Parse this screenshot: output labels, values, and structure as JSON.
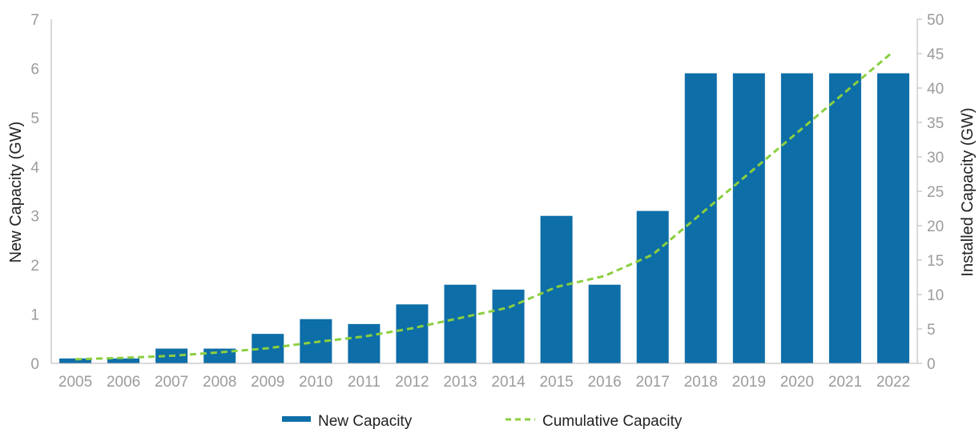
{
  "chart_data": {
    "type": "bar",
    "categories": [
      "2005",
      "2006",
      "2007",
      "2008",
      "2009",
      "2010",
      "2011",
      "2012",
      "2013",
      "2014",
      "2015",
      "2016",
      "2017",
      "2018",
      "2019",
      "2020",
      "2021",
      "2022"
    ],
    "series": [
      {
        "name": "New Capacity",
        "type": "bar",
        "axis": "left",
        "color": "#0e6ea8",
        "values": [
          0.1,
          0.1,
          0.3,
          0.3,
          0.6,
          0.9,
          0.8,
          1.2,
          1.6,
          1.5,
          3.0,
          1.6,
          3.1,
          5.9,
          5.9,
          5.9,
          5.9,
          5.9
        ]
      },
      {
        "name": "Cumulative Capacity",
        "type": "line",
        "line_style": "dashed",
        "axis": "right",
        "color": "#8bcf3f",
        "values": [
          0.6,
          0.8,
          1.1,
          1.6,
          2.2,
          3.1,
          3.9,
          5.1,
          6.6,
          8.1,
          11.1,
          12.7,
          15.8,
          21.7,
          27.6,
          33.5,
          39.4,
          45.3
        ]
      }
    ],
    "title": "",
    "xlabel": "",
    "ylabel": "New Capacity (GW)",
    "ylabel_right": "Installed Capacity (GW)",
    "ylim": [
      0,
      7
    ],
    "ylim_right": [
      0,
      50
    ],
    "yticks": [
      "0",
      "1",
      "2",
      "3",
      "4",
      "5",
      "6",
      "7"
    ],
    "yticks_right": [
      "0",
      "5",
      "10",
      "15",
      "20",
      "25",
      "30",
      "35",
      "40",
      "45",
      "50"
    ],
    "grid": false,
    "legend_position": "bottom-center"
  }
}
